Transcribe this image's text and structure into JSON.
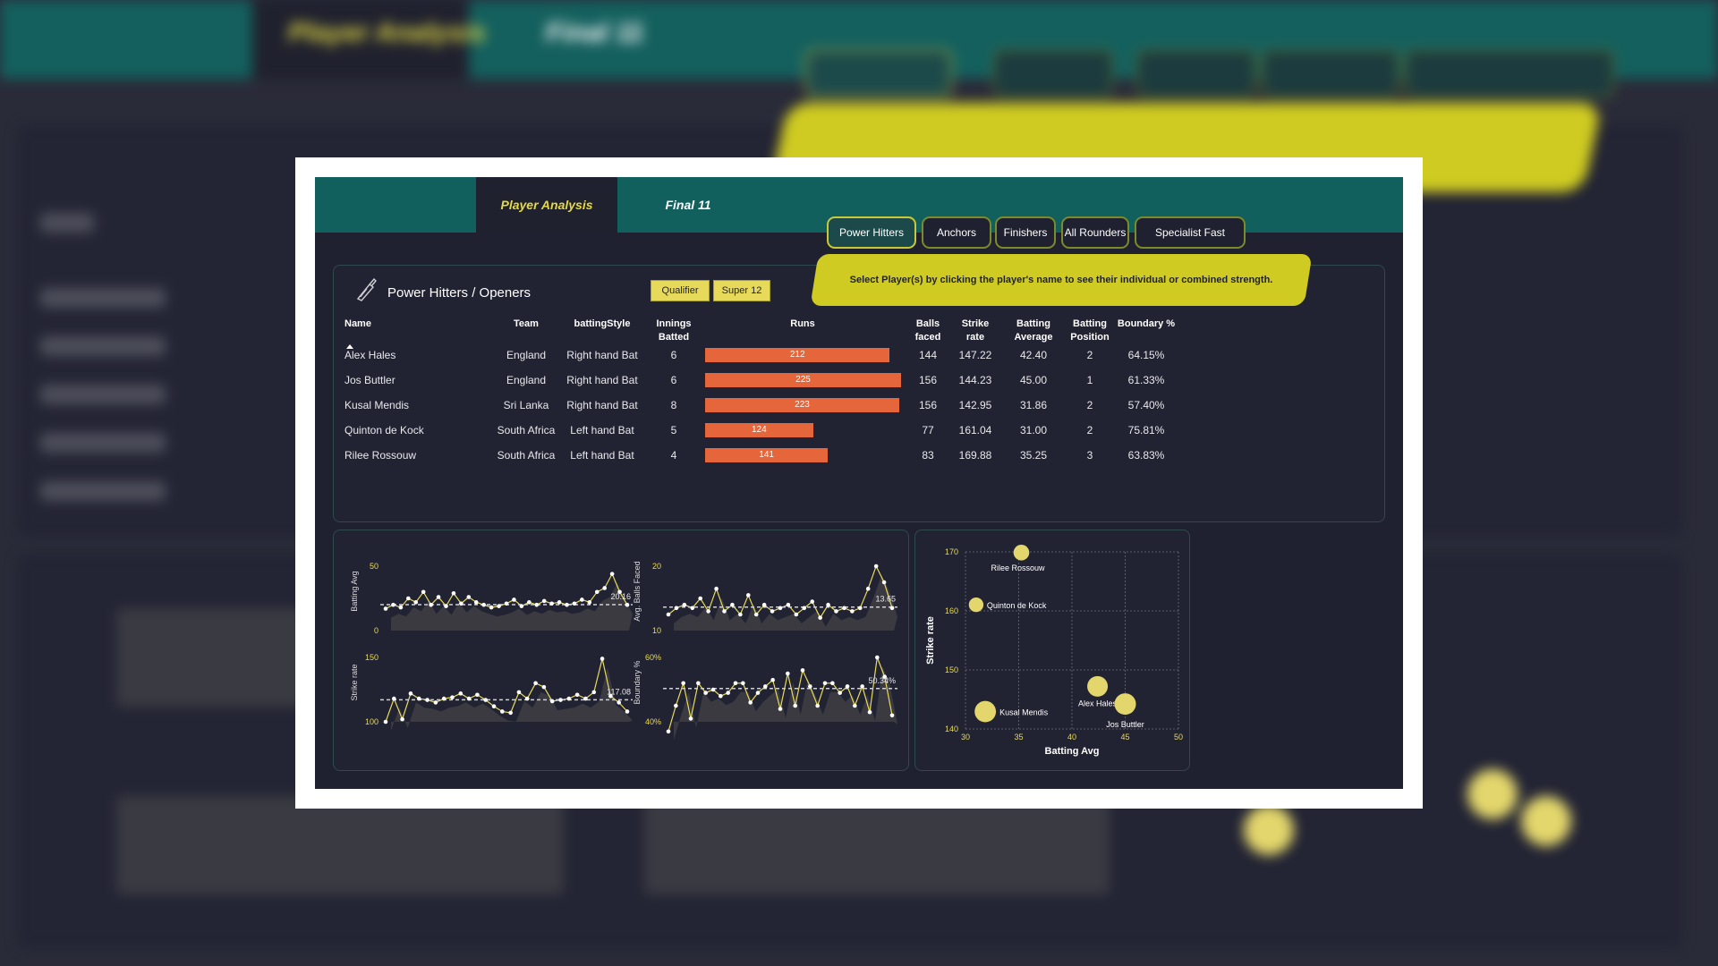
{
  "app": {
    "tabs": [
      {
        "label": "Player Analysis",
        "active": true
      },
      {
        "label": "Final 11",
        "active": false
      }
    ],
    "category_pills": [
      {
        "label": "Power Hitters",
        "active": true
      },
      {
        "label": "Anchors",
        "active": false
      },
      {
        "label": "Finishers",
        "active": false
      },
      {
        "label": "All Rounders",
        "active": false
      },
      {
        "label": "Specialist Fast Bowlers",
        "active": false
      }
    ],
    "banner_text": "Select Player(s) by clicking the player's name to see their individual or combined strength."
  },
  "table_panel": {
    "title": "Power Hitters / Openers",
    "icon": "cricket-bat-icon",
    "filters": [
      "Qualifier",
      "Super 12"
    ],
    "columns": {
      "name": "Name",
      "team": "Team",
      "style": "battingStyle",
      "innings": "Innings Batted",
      "runs": "Runs",
      "balls": "Balls faced",
      "sr": "Strike rate",
      "avg": "Batting Average",
      "pos": "Batting Position",
      "boundary": "Boundary %"
    },
    "rows": [
      {
        "name": "Alex Hales",
        "team": "England",
        "style": "Right hand Bat",
        "innings": "6",
        "runs": 212,
        "balls": "144",
        "sr": "147.22",
        "avg": "42.40",
        "pos": "2",
        "boundary": "64.15%"
      },
      {
        "name": "Jos Buttler",
        "team": "England",
        "style": "Right hand Bat",
        "innings": "6",
        "runs": 225,
        "balls": "156",
        "sr": "144.23",
        "avg": "45.00",
        "pos": "1",
        "boundary": "61.33%"
      },
      {
        "name": "Kusal Mendis",
        "team": "Sri Lanka",
        "style": "Right hand Bat",
        "innings": "8",
        "runs": 223,
        "balls": "156",
        "sr": "142.95",
        "avg": "31.86",
        "pos": "2",
        "boundary": "57.40%"
      },
      {
        "name": "Quinton de Kock",
        "team": "South Africa",
        "style": "Left hand Bat",
        "innings": "5",
        "runs": 124,
        "balls": "77",
        "sr": "161.04",
        "avg": "31.00",
        "pos": "2",
        "boundary": "75.81%"
      },
      {
        "name": "Rilee Rossouw",
        "team": "South Africa",
        "style": "Left hand Bat",
        "innings": "4",
        "runs": 141,
        "balls": "83",
        "sr": "169.88",
        "avg": "35.25",
        "pos": "3",
        "boundary": "63.83%"
      }
    ],
    "runs_max": 225
  },
  "colors": {
    "bar": "#e5663a",
    "line": "#e7da5a",
    "bubble": "#e3d66c",
    "accent_teal": "#11605d",
    "banner": "#cfcb22"
  },
  "chart_data": [
    {
      "type": "area",
      "ylabel": "Batting Avg",
      "ylim": [
        0,
        50
      ],
      "yticks": [
        "50",
        "0"
      ],
      "avg_label": "20.16",
      "avg": 20.16,
      "values": [
        17,
        20,
        18,
        25,
        22,
        30,
        20,
        26,
        19,
        29,
        21,
        26,
        22,
        20,
        18,
        19,
        21,
        24,
        19,
        22,
        20,
        23,
        21,
        22,
        20,
        21,
        24,
        22,
        30,
        33,
        44,
        30,
        20
      ]
    },
    {
      "type": "area",
      "ylabel": "Avg. Balls Faced",
      "ylim": [
        10,
        20
      ],
      "yticks": [
        "20",
        "10"
      ],
      "avg_label": "13.65",
      "avg": 13.65,
      "values": [
        12.5,
        13.5,
        14.0,
        13.5,
        15.0,
        13.0,
        16.5,
        13.0,
        14.0,
        12.5,
        15.5,
        12.5,
        14.0,
        13.0,
        13.5,
        14.0,
        12.5,
        13.5,
        14.5,
        12.0,
        14.0,
        13.0,
        13.5,
        13.0,
        13.5,
        16.5,
        20.0,
        17.5,
        13.5
      ]
    },
    {
      "type": "area",
      "ylabel": "Strike rate",
      "ylim": [
        100,
        150
      ],
      "yticks": [
        "150",
        "100"
      ],
      "avg_label": "117.08",
      "avg": 117.08,
      "values": [
        100,
        118,
        102,
        122,
        118,
        117,
        115,
        118,
        119,
        122,
        118,
        121,
        117,
        112,
        108,
        107,
        123,
        118,
        130,
        127,
        116,
        117,
        118,
        121,
        118,
        123,
        149,
        120,
        115,
        108
      ]
    },
    {
      "type": "area",
      "ylabel": "Boundary %",
      "ylim": [
        40,
        60
      ],
      "yticks": [
        "60%",
        "40%"
      ],
      "avg_label": "50.34%",
      "avg": 50.34,
      "values": [
        37,
        45,
        52,
        41,
        52,
        49,
        50,
        48,
        49,
        52,
        52,
        46,
        49,
        51,
        53,
        44,
        55,
        45,
        56,
        51,
        45,
        52,
        52,
        49,
        51,
        45,
        51,
        43,
        60,
        54,
        42
      ]
    },
    {
      "type": "scatter",
      "xlabel": "Batting Avg",
      "ylabel": "Strike rate",
      "xlim": [
        30,
        50
      ],
      "ylim": [
        140,
        170
      ],
      "xticks": [
        "30",
        "35",
        "40",
        "45",
        "50"
      ],
      "yticks": [
        "170",
        "160",
        "150",
        "140"
      ],
      "points": [
        {
          "label": "Rilee Rossouw",
          "x": 35.25,
          "y": 169.88,
          "size": 141
        },
        {
          "label": "Quinton de Kock",
          "x": 31.0,
          "y": 161.04,
          "size": 124
        },
        {
          "label": "Alex Hales",
          "x": 42.4,
          "y": 147.22,
          "size": 212
        },
        {
          "label": "Jos Buttler",
          "x": 45.0,
          "y": 144.23,
          "size": 225
        },
        {
          "label": "Kusal Mendis",
          "x": 31.86,
          "y": 142.95,
          "size": 223
        }
      ]
    }
  ]
}
